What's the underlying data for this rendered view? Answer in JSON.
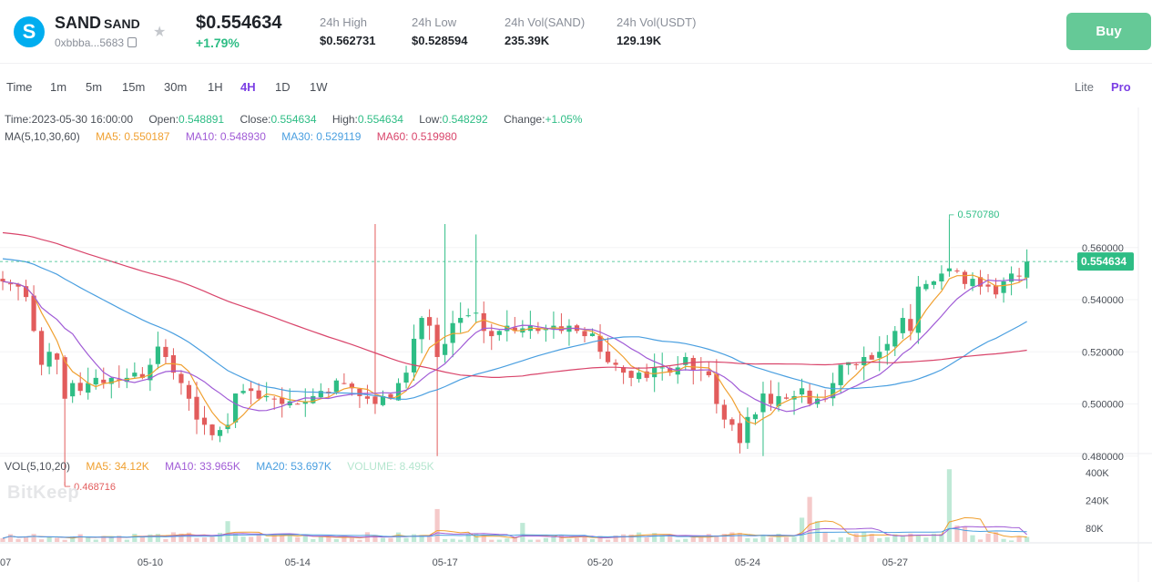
{
  "header": {
    "logo_letter": "S",
    "symbol": "SAND",
    "symbol_sub": "SAND",
    "address": "0xbbba...5683",
    "price": "$0.554634",
    "change": "+1.79%",
    "stats": [
      {
        "label": "24h High",
        "value": "$0.562731"
      },
      {
        "label": "24h Low",
        "value": "$0.528594"
      },
      {
        "label": "24h Vol(SAND)",
        "value": "235.39K"
      },
      {
        "label": "24h Vol(USDT)",
        "value": "129.19K"
      }
    ],
    "buy_label": "Buy"
  },
  "timeframes": [
    "Time",
    "1m",
    "5m",
    "15m",
    "30m",
    "1H",
    "4H",
    "1D",
    "1W"
  ],
  "active_timeframe": "4H",
  "modes": [
    "Lite",
    "Pro"
  ],
  "active_mode": "Pro",
  "ohlc": {
    "time_label": "Time:",
    "time": "2023-05-30 16:00:00",
    "open_label": "Open:",
    "open": "0.548891",
    "close_label": "Close:",
    "close": "0.554634",
    "high_label": "High:",
    "high": "0.554634",
    "low_label": "Low:",
    "low": "0.548292",
    "change_label": "Change:",
    "change": "+1.05%"
  },
  "ma_legend": {
    "title": "MA(5,10,30,60)",
    "ma5": "MA5: 0.550187",
    "ma10": "MA10: 0.548930",
    "ma30": "MA30: 0.529119",
    "ma60": "MA60: 0.519980"
  },
  "vol_legend": {
    "title": "VOL(5,10,20)",
    "ma5": "MA5: 34.12K",
    "ma10": "MA10: 33.965K",
    "ma20": "MA20: 53.697K",
    "volume": "VOLUME: 8.495K"
  },
  "watermark": "BitKeep",
  "colors": {
    "up": "#2ebd85",
    "down": "#e25c5c",
    "ma5": "#f0a030",
    "ma10": "#a05bd6",
    "ma30": "#4a9fe0",
    "ma60": "#d9456b",
    "accent": "#7b3fe4"
  },
  "chart_data": {
    "type": "candlestick",
    "price_axis_labels": [
      "0.560000",
      "0.540000",
      "0.520000",
      "0.500000",
      "0.480000"
    ],
    "price_ticks": [
      0.56,
      0.54,
      0.52,
      0.5,
      0.48
    ],
    "volume_axis_labels": [
      "400K",
      "240K",
      "80K"
    ],
    "volume_ticks": [
      400,
      240,
      80
    ],
    "x_labels": [
      "07",
      "05-10",
      "05-14",
      "05-17",
      "05-20",
      "05-24",
      "05-27"
    ],
    "current_price_label": "0.554634",
    "current_price": 0.554634,
    "max_label": "0.570780",
    "max_price": 0.57078,
    "min_label": "0.468716",
    "min_price": 0.468716,
    "closes": [
      0.547,
      0.546,
      0.545,
      0.541,
      0.528,
      0.515,
      0.52,
      0.517,
      0.502,
      0.508,
      0.505,
      0.508,
      0.51,
      0.508,
      0.51,
      0.509,
      0.51,
      0.512,
      0.51,
      0.515,
      0.522,
      0.518,
      0.512,
      0.508,
      0.502,
      0.494,
      0.492,
      0.488,
      0.49,
      0.492,
      0.504,
      0.505,
      0.505,
      0.502,
      0.503,
      0.502,
      0.5,
      0.501,
      0.5,
      0.501,
      0.503,
      0.505,
      0.504,
      0.509,
      0.508,
      0.506,
      0.503,
      0.502,
      0.5,
      0.503,
      0.502,
      0.508,
      0.512,
      0.525,
      0.533,
      0.53,
      0.518,
      0.523,
      0.531,
      0.533,
      0.534,
      0.535,
      0.528,
      0.526,
      0.528,
      0.53,
      0.528,
      0.529,
      0.53,
      0.528,
      0.529,
      0.53,
      0.528,
      0.53,
      0.528,
      0.526,
      0.527,
      0.52,
      0.516,
      0.515,
      0.512,
      0.51,
      0.512,
      0.51,
      0.514,
      0.514,
      0.512,
      0.514,
      0.518,
      0.513,
      0.513,
      0.511,
      0.5,
      0.494,
      0.492,
      0.485,
      0.495,
      0.496,
      0.504,
      0.5,
      0.503,
      0.502,
      0.503,
      0.506,
      0.5,
      0.502,
      0.502,
      0.508,
      0.515,
      0.516,
      0.515,
      0.518,
      0.517,
      0.52,
      0.523,
      0.528,
      0.533,
      0.528,
      0.545,
      0.546,
      0.547,
      0.55,
      0.552,
      0.551,
      0.546,
      0.548,
      0.545,
      0.545,
      0.542,
      0.547,
      0.55,
      0.549,
      0.5546
    ]
  }
}
